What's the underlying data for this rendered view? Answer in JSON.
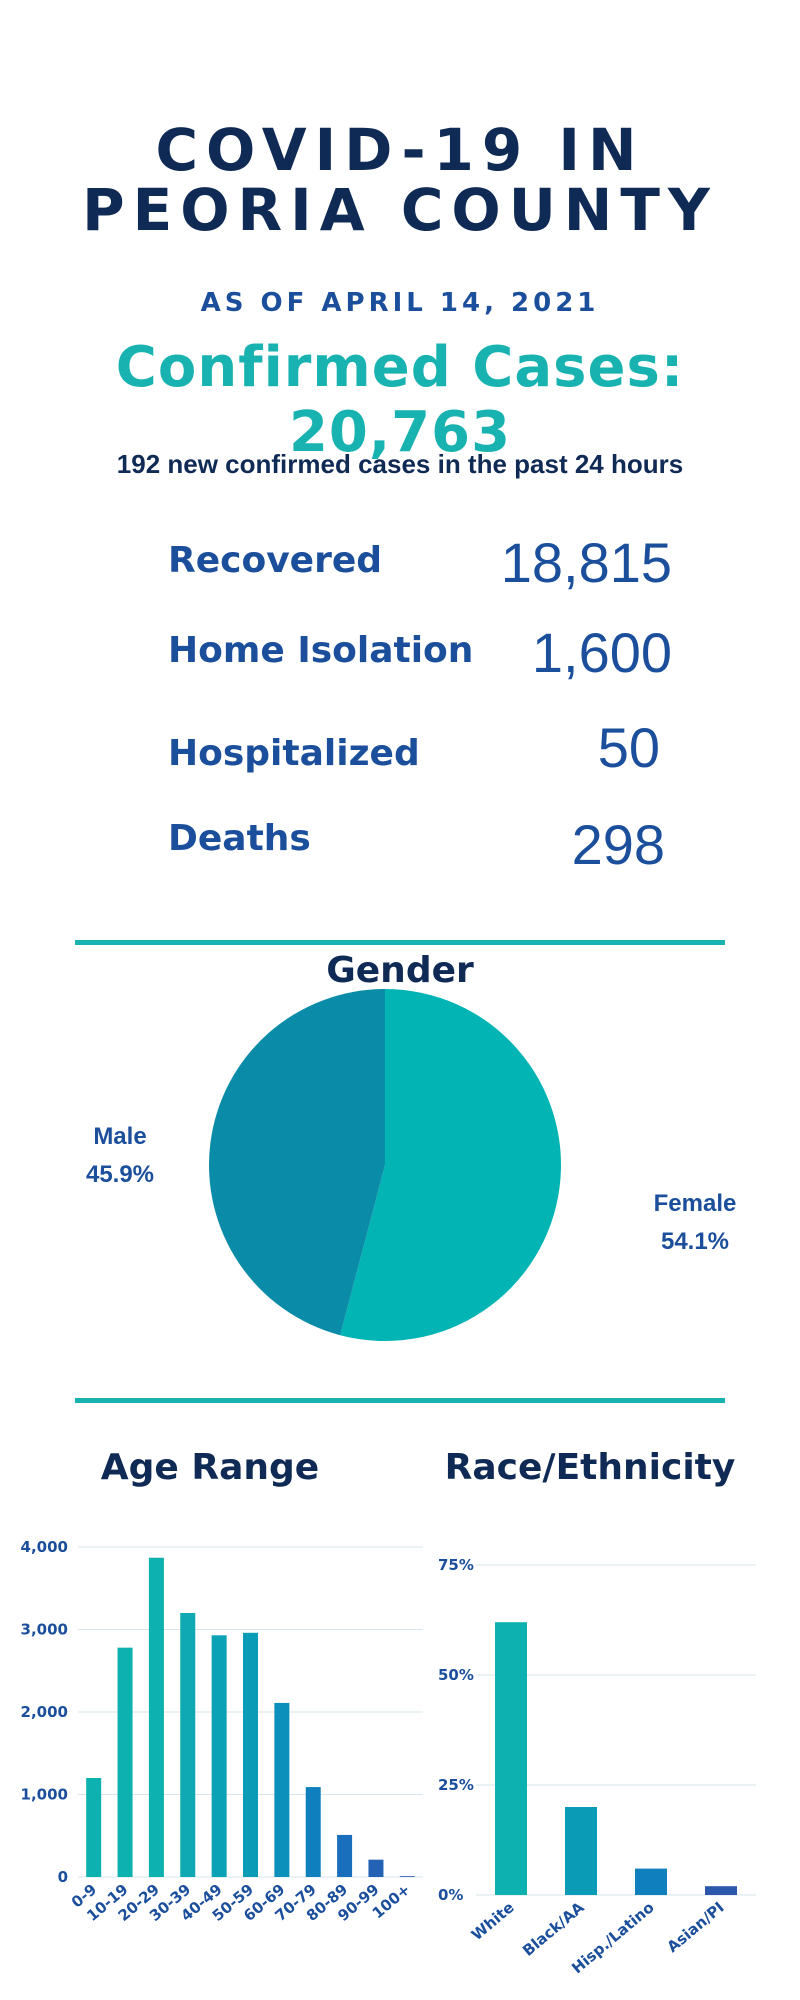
{
  "header": {
    "title_line1": "COVID-19 IN",
    "title_line2": "PEORIA COUNTY",
    "as_of": "AS OF APRIL 14, 2021",
    "confirmed": "Confirmed Cases: 20,763",
    "new_cases": "192 new confirmed cases in the past 24 hours"
  },
  "stats": [
    {
      "label": "Recovered",
      "value": "18,815"
    },
    {
      "label": "Home Isolation",
      "value": "1,600"
    },
    {
      "label": "Hospitalized",
      "value": "50"
    },
    {
      "label": "Deaths",
      "value": "298"
    }
  ],
  "colors": {
    "navy": "#0f2a55",
    "blue": "#1b4f9c",
    "teal": "#18b3b1",
    "male": "#0a8ca8",
    "female": "#02b4b4"
  },
  "chart_data": [
    {
      "type": "pie",
      "title": "Gender",
      "slices": [
        {
          "label": "Male",
          "value_label": "45.9%",
          "value": 45.9
        },
        {
          "label": "Female",
          "value_label": "54.1%",
          "value": 54.1
        }
      ]
    },
    {
      "type": "bar",
      "title": "Age Range",
      "categories": [
        "0-9",
        "10-19",
        "20-29",
        "30-39",
        "40-49",
        "50-59",
        "60-69",
        "70-79",
        "80-89",
        "90-99",
        "100+"
      ],
      "values": [
        1200,
        2780,
        3870,
        3200,
        2930,
        2960,
        2110,
        1090,
        510,
        210,
        10
      ],
      "ylim": [
        0,
        4000
      ],
      "yticks": [
        "0",
        "1,000",
        "2,000",
        "3,000",
        "4,000"
      ],
      "ytick_values": [
        0,
        1000,
        2000,
        3000,
        4000
      ],
      "bar_colors": [
        "#0cb1b0",
        "#0cb1b0",
        "#0cb1b0",
        "#0ea9b2",
        "#0ba2b5",
        "#0a9cb7",
        "#0b90bb",
        "#0f7fbd",
        "#1a6fbd",
        "#2462b5",
        "#2d57ad"
      ]
    },
    {
      "type": "bar",
      "title": "Race/Ethnicity",
      "categories": [
        "White",
        "Black/AA",
        "Hisp./Latino",
        "Asian/PI"
      ],
      "values": [
        62,
        20,
        6,
        2
      ],
      "ylim": [
        0,
        75
      ],
      "yticks": [
        "0%",
        "25%",
        "50%",
        "75%"
      ],
      "ytick_values": [
        0,
        25,
        50,
        75
      ],
      "bar_colors": [
        "#0cb1b0",
        "#0a9cb7",
        "#0f7fbd",
        "#2d57ad"
      ]
    }
  ]
}
